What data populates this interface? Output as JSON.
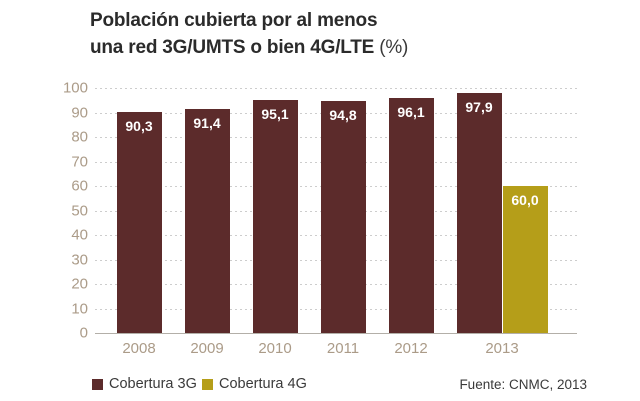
{
  "title": {
    "line1": "Población cubierta por al menos",
    "line2": "una red 3G/UMTS o bien 4G/LTE",
    "line2_suffix": " (%)"
  },
  "source": "Fuente: CNMC, 2013",
  "legend": [
    {
      "label": "Cobertura 3G",
      "color": "#5c2b2b"
    },
    {
      "label": "Cobertura 4G",
      "color": "#b59e19"
    }
  ],
  "colors": {
    "bar_3g": "#5c2b2b",
    "bar_4g": "#b59e19",
    "axis_labels": "#ab9b88",
    "gridline": "#cdcdcd",
    "axis_line": "#b3afa8",
    "value_label": "#ffffff",
    "title_text": "#2b2b2b",
    "background": "#ffffff"
  },
  "chart_data": {
    "type": "bar",
    "title": "Población cubierta por al menos una red 3G/UMTS o bien 4G/LTE (%)",
    "categories": [
      "2008",
      "2009",
      "2010",
      "2011",
      "2012",
      "2013"
    ],
    "series": [
      {
        "name": "Cobertura 3G",
        "color": "#5c2b2b",
        "values": [
          90.3,
          91.4,
          95.1,
          94.8,
          96.1,
          97.9
        ],
        "labels": [
          "90,3",
          "91,4",
          "95,1",
          "94,8",
          "96,1",
          "97,9"
        ]
      },
      {
        "name": "Cobertura 4G",
        "color": "#b59e19",
        "values": [
          null,
          null,
          null,
          null,
          null,
          60.0
        ],
        "labels": [
          null,
          null,
          null,
          null,
          null,
          "60,0"
        ]
      }
    ],
    "xlabel": "",
    "ylabel": "",
    "ylim": [
      0,
      100
    ],
    "ytick_step": 10,
    "yticks": [
      0,
      10,
      20,
      30,
      40,
      50,
      60,
      70,
      80,
      90,
      100
    ],
    "grid": "horizontal-dotted",
    "value_labels": "inside-top, white, comma decimals",
    "legend_position": "bottom-left",
    "source_note": "Fuente: CNMC, 2013"
  }
}
